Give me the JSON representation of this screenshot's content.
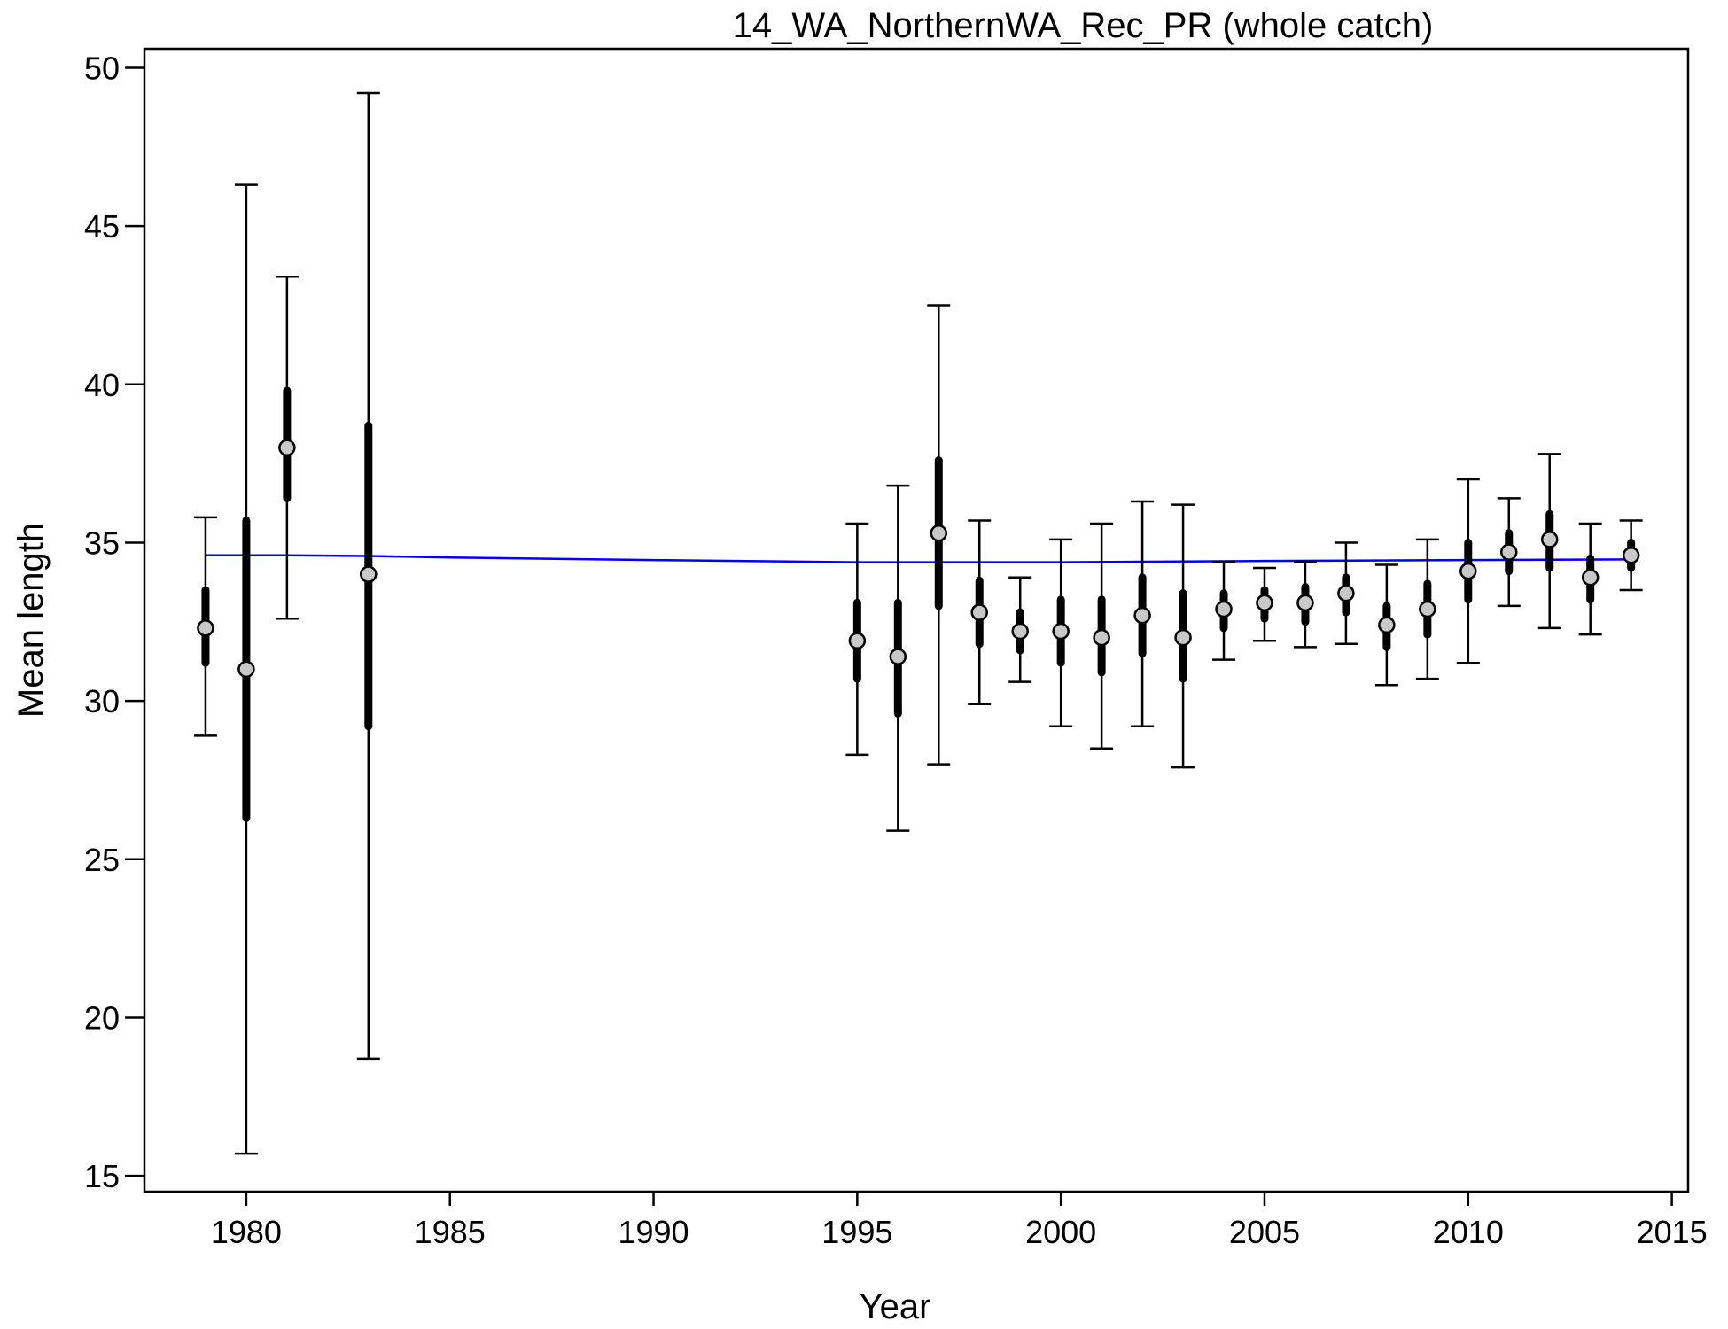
{
  "chart_data": {
    "type": "scatter",
    "title": "14_WA_NorthernWA_Rec_PR (whole catch)",
    "xlabel": "Year",
    "ylabel": "Mean length",
    "xlim": [
      1977.5,
      2015.4
    ],
    "ylim": [
      14.5,
      50.6
    ],
    "xticks": [
      1980,
      1985,
      1990,
      1995,
      2000,
      2005,
      2010,
      2015
    ],
    "yticks": [
      15,
      20,
      25,
      30,
      35,
      40,
      45,
      50
    ],
    "grid": false,
    "legend": "none",
    "colors": {
      "expected_line": "#0000ff",
      "point_fill": "#c8c8c8",
      "interval": "#000000"
    },
    "series": [
      {
        "role": "observed",
        "points": [
          {
            "x": 1979,
            "y": 32.3,
            "inner": [
              31.2,
              33.5
            ],
            "outer": [
              28.9,
              35.8
            ]
          },
          {
            "x": 1980,
            "y": 31.0,
            "inner": [
              26.3,
              35.7
            ],
            "outer": [
              15.7,
              46.3
            ]
          },
          {
            "x": 1981,
            "y": 38.0,
            "inner": [
              36.4,
              39.8
            ],
            "outer": [
              32.6,
              43.4
            ]
          },
          {
            "x": 1983,
            "y": 34.0,
            "inner": [
              29.2,
              38.7
            ],
            "outer": [
              18.7,
              49.2
            ]
          },
          {
            "x": 1995,
            "y": 31.9,
            "inner": [
              30.7,
              33.1
            ],
            "outer": [
              28.3,
              35.6
            ]
          },
          {
            "x": 1996,
            "y": 31.4,
            "inner": [
              29.6,
              33.1
            ],
            "outer": [
              25.9,
              36.8
            ]
          },
          {
            "x": 1997,
            "y": 35.3,
            "inner": [
              33.0,
              37.6
            ],
            "outer": [
              28.0,
              42.5
            ]
          },
          {
            "x": 1998,
            "y": 32.8,
            "inner": [
              31.8,
              33.8
            ],
            "outer": [
              29.9,
              35.7
            ]
          },
          {
            "x": 1999,
            "y": 32.2,
            "inner": [
              31.6,
              32.8
            ],
            "outer": [
              30.6,
              33.9
            ]
          },
          {
            "x": 2000,
            "y": 32.2,
            "inner": [
              31.2,
              33.2
            ],
            "outer": [
              29.2,
              35.1
            ]
          },
          {
            "x": 2001,
            "y": 32.0,
            "inner": [
              30.9,
              33.2
            ],
            "outer": [
              28.5,
              35.6
            ]
          },
          {
            "x": 2002,
            "y": 32.7,
            "inner": [
              31.5,
              33.9
            ],
            "outer": [
              29.2,
              36.3
            ]
          },
          {
            "x": 2003,
            "y": 32.0,
            "inner": [
              30.7,
              33.4
            ],
            "outer": [
              27.9,
              36.2
            ]
          },
          {
            "x": 2004,
            "y": 32.9,
            "inner": [
              32.3,
              33.4
            ],
            "outer": [
              31.3,
              34.4
            ]
          },
          {
            "x": 2005,
            "y": 33.1,
            "inner": [
              32.6,
              33.5
            ],
            "outer": [
              31.9,
              34.2
            ]
          },
          {
            "x": 2006,
            "y": 33.1,
            "inner": [
              32.5,
              33.6
            ],
            "outer": [
              31.7,
              34.4
            ]
          },
          {
            "x": 2007,
            "y": 33.4,
            "inner": [
              32.8,
              33.9
            ],
            "outer": [
              31.8,
              35.0
            ]
          },
          {
            "x": 2008,
            "y": 32.4,
            "inner": [
              31.7,
              33.0
            ],
            "outer": [
              30.5,
              34.3
            ]
          },
          {
            "x": 2009,
            "y": 32.9,
            "inner": [
              32.1,
              33.7
            ],
            "outer": [
              30.7,
              35.1
            ]
          },
          {
            "x": 2010,
            "y": 34.1,
            "inner": [
              33.2,
              35.0
            ],
            "outer": [
              31.2,
              37.0
            ]
          },
          {
            "x": 2011,
            "y": 34.7,
            "inner": [
              34.1,
              35.3
            ],
            "outer": [
              33.0,
              36.4
            ]
          },
          {
            "x": 2012,
            "y": 35.1,
            "inner": [
              34.2,
              35.9
            ],
            "outer": [
              32.3,
              37.8
            ]
          },
          {
            "x": 2013,
            "y": 33.9,
            "inner": [
              33.2,
              34.5
            ],
            "outer": [
              32.1,
              35.6
            ]
          },
          {
            "x": 2014,
            "y": 34.6,
            "inner": [
              34.2,
              35.0
            ],
            "outer": [
              33.5,
              35.7
            ]
          }
        ]
      },
      {
        "role": "expected",
        "x": [
          1979,
          1980,
          1981,
          1983,
          1985,
          1990,
          1995,
          2000,
          2005,
          2010,
          2014
        ],
        "y": [
          34.6,
          34.6,
          34.6,
          34.58,
          34.53,
          34.45,
          34.38,
          34.38,
          34.42,
          34.45,
          34.47
        ]
      }
    ]
  }
}
